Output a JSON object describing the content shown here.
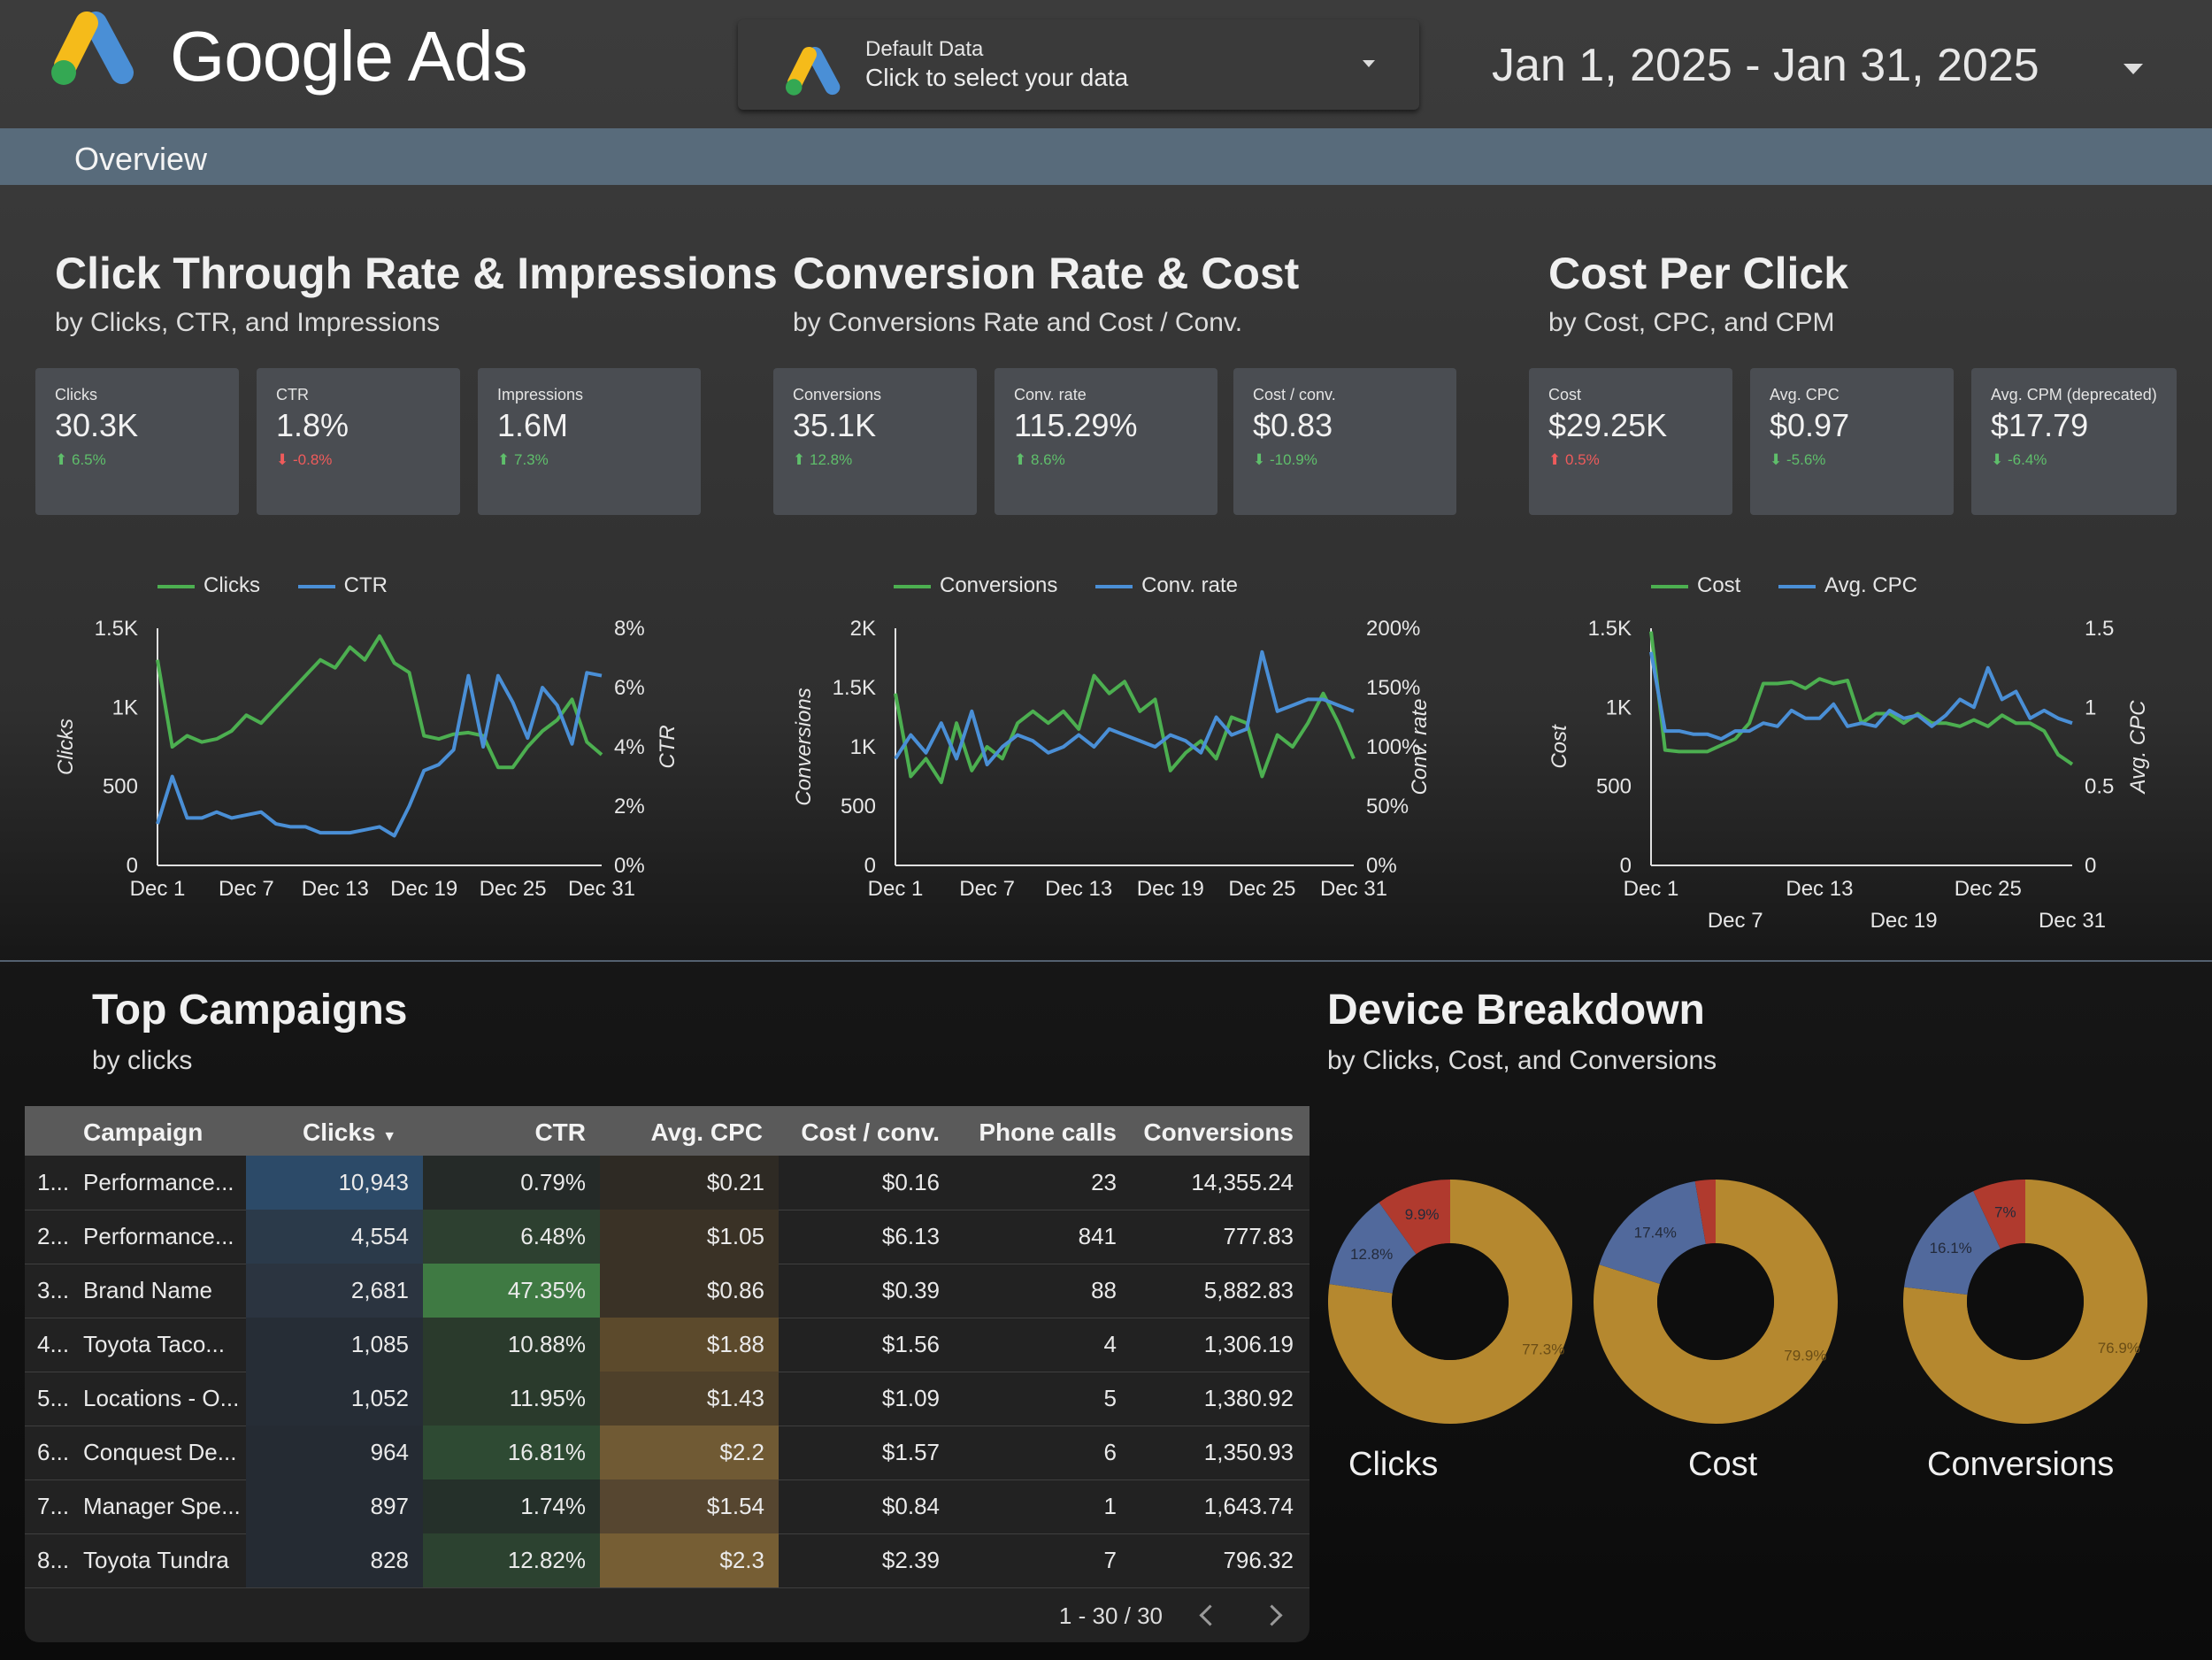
{
  "header": {
    "logo_text": "Google Ads",
    "data_selector": {
      "title": "Default Data",
      "subtitle": "Click to select your data"
    },
    "date_range": "Jan 1, 2025 - Jan 31, 2025"
  },
  "nav": {
    "tab": "Overview"
  },
  "sections": {
    "ctr": {
      "title": "Click Through Rate & Impressions",
      "subtitle": "by Clicks, CTR, and Impressions",
      "kpis": [
        {
          "label": "Clicks",
          "value": "30.3K",
          "change": "6.5%",
          "dir": "up"
        },
        {
          "label": "CTR",
          "value": "1.8%",
          "change": "-0.8%",
          "dir": "down"
        },
        {
          "label": "Impressions",
          "value": "1.6M",
          "change": "7.3%",
          "dir": "up"
        }
      ]
    },
    "conv": {
      "title": "Conversion Rate & Cost",
      "subtitle": "by Conversions Rate and Cost / Conv.",
      "kpis": [
        {
          "label": "Conversions",
          "value": "35.1K",
          "change": "12.8%",
          "dir": "up"
        },
        {
          "label": "Conv. rate",
          "value": "115.29%",
          "change": "8.6%",
          "dir": "up"
        },
        {
          "label": "Cost / conv.",
          "value": "$0.83",
          "change": "-10.9%",
          "dir": "down-good"
        }
      ]
    },
    "cpc": {
      "title": "Cost Per Click",
      "subtitle": "by Cost, CPC, and CPM",
      "kpis": [
        {
          "label": "Cost",
          "value": "$29.25K",
          "change": "0.5%",
          "dir": "up-bad"
        },
        {
          "label": "Avg. CPC",
          "value": "$0.97",
          "change": "-5.6%",
          "dir": "down-good"
        },
        {
          "label": "Avg. CPM (deprecated)",
          "value": "$17.79",
          "change": "-6.4%",
          "dir": "down-good"
        }
      ]
    }
  },
  "colors": {
    "green": "#4caf50",
    "blue": "#4a8fd6",
    "gold": "#b5882f",
    "slate": "#51699c",
    "red": "#b03a2e",
    "up": "#5fbf6b",
    "down": "#ef5b5b"
  },
  "chart_data": [
    {
      "type": "line",
      "x_ticks": [
        "Dec 1",
        "Dec 7",
        "Dec 13",
        "Dec 19",
        "Dec 25",
        "Dec 31"
      ],
      "x": [
        "Dec 1",
        "Dec 2",
        "Dec 3",
        "Dec 4",
        "Dec 5",
        "Dec 6",
        "Dec 7",
        "Dec 8",
        "Dec 9",
        "Dec 10",
        "Dec 11",
        "Dec 12",
        "Dec 13",
        "Dec 14",
        "Dec 15",
        "Dec 16",
        "Dec 17",
        "Dec 18",
        "Dec 19",
        "Dec 20",
        "Dec 21",
        "Dec 22",
        "Dec 23",
        "Dec 24",
        "Dec 25",
        "Dec 26",
        "Dec 27",
        "Dec 28",
        "Dec 29",
        "Dec 30",
        "Dec 31"
      ],
      "series": [
        {
          "name": "Clicks",
          "axis": "left",
          "color": "#4caf50",
          "values": [
            1300,
            750,
            820,
            780,
            800,
            850,
            950,
            900,
            1000,
            1100,
            1200,
            1300,
            1250,
            1380,
            1300,
            1450,
            1280,
            1220,
            820,
            800,
            830,
            840,
            820,
            620,
            620,
            750,
            850,
            920,
            1050,
            780,
            700
          ]
        },
        {
          "name": "CTR",
          "axis": "right",
          "color": "#4a8fd6",
          "values": [
            1.4,
            3.0,
            1.6,
            1.6,
            1.8,
            1.6,
            1.7,
            1.8,
            1.4,
            1.3,
            1.3,
            1.1,
            1.1,
            1.1,
            1.2,
            1.3,
            1.0,
            2.0,
            3.2,
            3.4,
            3.9,
            6.4,
            4.0,
            6.4,
            5.5,
            4.3,
            6.0,
            5.4,
            4.1,
            6.5,
            6.4
          ]
        }
      ],
      "ylabel_left": "Clicks",
      "ylabel_right": "CTR",
      "y_left_ticks": [
        "0",
        "500",
        "1K",
        "1.5K"
      ],
      "y_right_ticks": [
        "0%",
        "2%",
        "4%",
        "6%",
        "8%"
      ],
      "ylim_left": [
        0,
        1500
      ],
      "ylim_right": [
        0,
        8
      ],
      "legend_position": "top"
    },
    {
      "type": "line",
      "x_ticks": [
        "Dec 1",
        "Dec 7",
        "Dec 13",
        "Dec 19",
        "Dec 25",
        "Dec 31"
      ],
      "x": [
        "Dec 1",
        "Dec 2",
        "Dec 3",
        "Dec 4",
        "Dec 5",
        "Dec 6",
        "Dec 7",
        "Dec 8",
        "Dec 9",
        "Dec 10",
        "Dec 11",
        "Dec 12",
        "Dec 13",
        "Dec 14",
        "Dec 15",
        "Dec 16",
        "Dec 17",
        "Dec 18",
        "Dec 19",
        "Dec 20",
        "Dec 21",
        "Dec 22",
        "Dec 23",
        "Dec 24",
        "Dec 25",
        "Dec 26",
        "Dec 27",
        "Dec 28",
        "Dec 29",
        "Dec 30",
        "Dec 31"
      ],
      "series": [
        {
          "name": "Conversions",
          "axis": "left",
          "color": "#4caf50",
          "values": [
            1450,
            750,
            900,
            700,
            1200,
            800,
            1000,
            900,
            1200,
            1300,
            1200,
            1300,
            1150,
            1600,
            1450,
            1550,
            1300,
            1400,
            800,
            950,
            1050,
            900,
            1250,
            1200,
            750,
            1100,
            1000,
            1200,
            1450,
            1200,
            900
          ]
        },
        {
          "name": "Conv. rate",
          "axis": "right",
          "color": "#4a8fd6",
          "values": [
            90,
            110,
            95,
            120,
            90,
            130,
            85,
            100,
            110,
            105,
            95,
            100,
            110,
            100,
            115,
            110,
            105,
            100,
            110,
            105,
            95,
            125,
            110,
            115,
            180,
            130,
            135,
            140,
            140,
            135,
            130
          ]
        }
      ],
      "ylabel_left": "Conversions",
      "ylabel_right": "Conv. rate",
      "y_left_ticks": [
        "0",
        "500",
        "1K",
        "1.5K",
        "2K"
      ],
      "y_right_ticks": [
        "0%",
        "50%",
        "100%",
        "150%",
        "200%"
      ],
      "ylim_left": [
        0,
        2000
      ],
      "ylim_right": [
        0,
        200
      ],
      "legend_position": "top"
    },
    {
      "type": "line",
      "x_ticks": [
        "Dec 1",
        "Dec 7",
        "Dec 13",
        "Dec 19",
        "Dec 25",
        "Dec 31"
      ],
      "x_ticks_top_row": [
        "Dec 1",
        "Dec 13",
        "Dec 25"
      ],
      "x_ticks_bottom_row": [
        "Dec 7",
        "Dec 19",
        "Dec 31"
      ],
      "x": [
        "Dec 1",
        "Dec 2",
        "Dec 3",
        "Dec 4",
        "Dec 5",
        "Dec 6",
        "Dec 7",
        "Dec 8",
        "Dec 9",
        "Dec 10",
        "Dec 11",
        "Dec 12",
        "Dec 13",
        "Dec 14",
        "Dec 15",
        "Dec 16",
        "Dec 17",
        "Dec 18",
        "Dec 19",
        "Dec 20",
        "Dec 21",
        "Dec 22",
        "Dec 23",
        "Dec 24",
        "Dec 25",
        "Dec 26",
        "Dec 27",
        "Dec 28",
        "Dec 29",
        "Dec 30",
        "Dec 31"
      ],
      "series": [
        {
          "name": "Cost",
          "axis": "left",
          "color": "#4caf50",
          "values": [
            1480,
            730,
            720,
            720,
            720,
            760,
            800,
            900,
            1150,
            1150,
            1160,
            1120,
            1180,
            1150,
            1170,
            900,
            960,
            960,
            900,
            960,
            900,
            900,
            880,
            920,
            880,
            950,
            900,
            900,
            850,
            700,
            640
          ]
        },
        {
          "name": "Avg. CPC",
          "axis": "right",
          "color": "#4a8fd6",
          "values": [
            1.35,
            0.85,
            0.85,
            0.83,
            0.83,
            0.8,
            0.85,
            0.85,
            0.9,
            0.88,
            0.98,
            0.93,
            0.93,
            1.02,
            0.88,
            0.9,
            0.88,
            0.98,
            0.93,
            0.95,
            0.88,
            0.95,
            1.05,
            1.0,
            1.25,
            1.05,
            1.1,
            0.93,
            0.98,
            0.93,
            0.9
          ]
        }
      ],
      "ylabel_left": "Cost",
      "ylabel_right": "Avg. CPC",
      "y_left_ticks": [
        "0",
        "500",
        "1K",
        "1.5K"
      ],
      "y_right_ticks": [
        "0",
        "0.5",
        "1",
        "1.5"
      ],
      "ylim_left": [
        0,
        1500
      ],
      "ylim_right": [
        0,
        1.5
      ],
      "legend_position": "top"
    },
    {
      "type": "pie",
      "title": "Clicks",
      "slices": [
        {
          "value": 77.3,
          "label": "77.3%"
        },
        {
          "value": 12.8,
          "label": "12.8%"
        },
        {
          "value": 9.9,
          "label": "9.9%"
        }
      ]
    },
    {
      "type": "pie",
      "title": "Cost",
      "slices": [
        {
          "value": 79.9,
          "label": "79.9%"
        },
        {
          "value": 17.4,
          "label": "17.4%"
        },
        {
          "value": 2.7,
          "label": ""
        }
      ]
    },
    {
      "type": "pie",
      "title": "Conversions",
      "slices": [
        {
          "value": 76.9,
          "label": "76.9%"
        },
        {
          "value": 16.1,
          "label": "16.1%"
        },
        {
          "value": 7.0,
          "label": "7%"
        }
      ]
    }
  ],
  "campaigns": {
    "title": "Top Campaigns",
    "subtitle": "by clicks",
    "columns": [
      "Campaign",
      "Clicks",
      "CTR",
      "Avg. CPC",
      "Cost / conv.",
      "Phone calls",
      "Conversions"
    ],
    "sort_column": "Clicks",
    "rows": [
      {
        "idx": "1...",
        "campaign": "Performance...",
        "clicks": "10,943",
        "ctr": "0.79%",
        "cpc": "$0.21",
        "cost_conv": "$0.16",
        "calls": "23",
        "conversions": "14,355.24"
      },
      {
        "idx": "2...",
        "campaign": "Performance...",
        "clicks": "4,554",
        "ctr": "6.48%",
        "cpc": "$1.05",
        "cost_conv": "$6.13",
        "calls": "841",
        "conversions": "777.83"
      },
      {
        "idx": "3...",
        "campaign": "Brand Name",
        "clicks": "2,681",
        "ctr": "47.35%",
        "cpc": "$0.86",
        "cost_conv": "$0.39",
        "calls": "88",
        "conversions": "5,882.83"
      },
      {
        "idx": "4...",
        "campaign": "Toyota Taco...",
        "clicks": "1,085",
        "ctr": "10.88%",
        "cpc": "$1.88",
        "cost_conv": "$1.56",
        "calls": "4",
        "conversions": "1,306.19"
      },
      {
        "idx": "5...",
        "campaign": "Locations - O...",
        "clicks": "1,052",
        "ctr": "11.95%",
        "cpc": "$1.43",
        "cost_conv": "$1.09",
        "calls": "5",
        "conversions": "1,380.92"
      },
      {
        "idx": "6...",
        "campaign": "Conquest De...",
        "clicks": "964",
        "ctr": "16.81%",
        "cpc": "$2.2",
        "cost_conv": "$1.57",
        "calls": "6",
        "conversions": "1,350.93"
      },
      {
        "idx": "7...",
        "campaign": "Manager Spe...",
        "clicks": "897",
        "ctr": "1.74%",
        "cpc": "$1.54",
        "cost_conv": "$0.84",
        "calls": "1",
        "conversions": "1,643.74"
      },
      {
        "idx": "8...",
        "campaign": "Toyota Tundra",
        "clicks": "828",
        "ctr": "12.82%",
        "cpc": "$2.3",
        "cost_conv": "$2.39",
        "calls": "7",
        "conversions": "796.32"
      }
    ],
    "pagination": "1 - 30 / 30"
  },
  "devices": {
    "title": "Device Breakdown",
    "subtitle": "by Clicks, Cost, and Conversions",
    "labels": [
      "Clicks",
      "Cost",
      "Conversions"
    ]
  }
}
